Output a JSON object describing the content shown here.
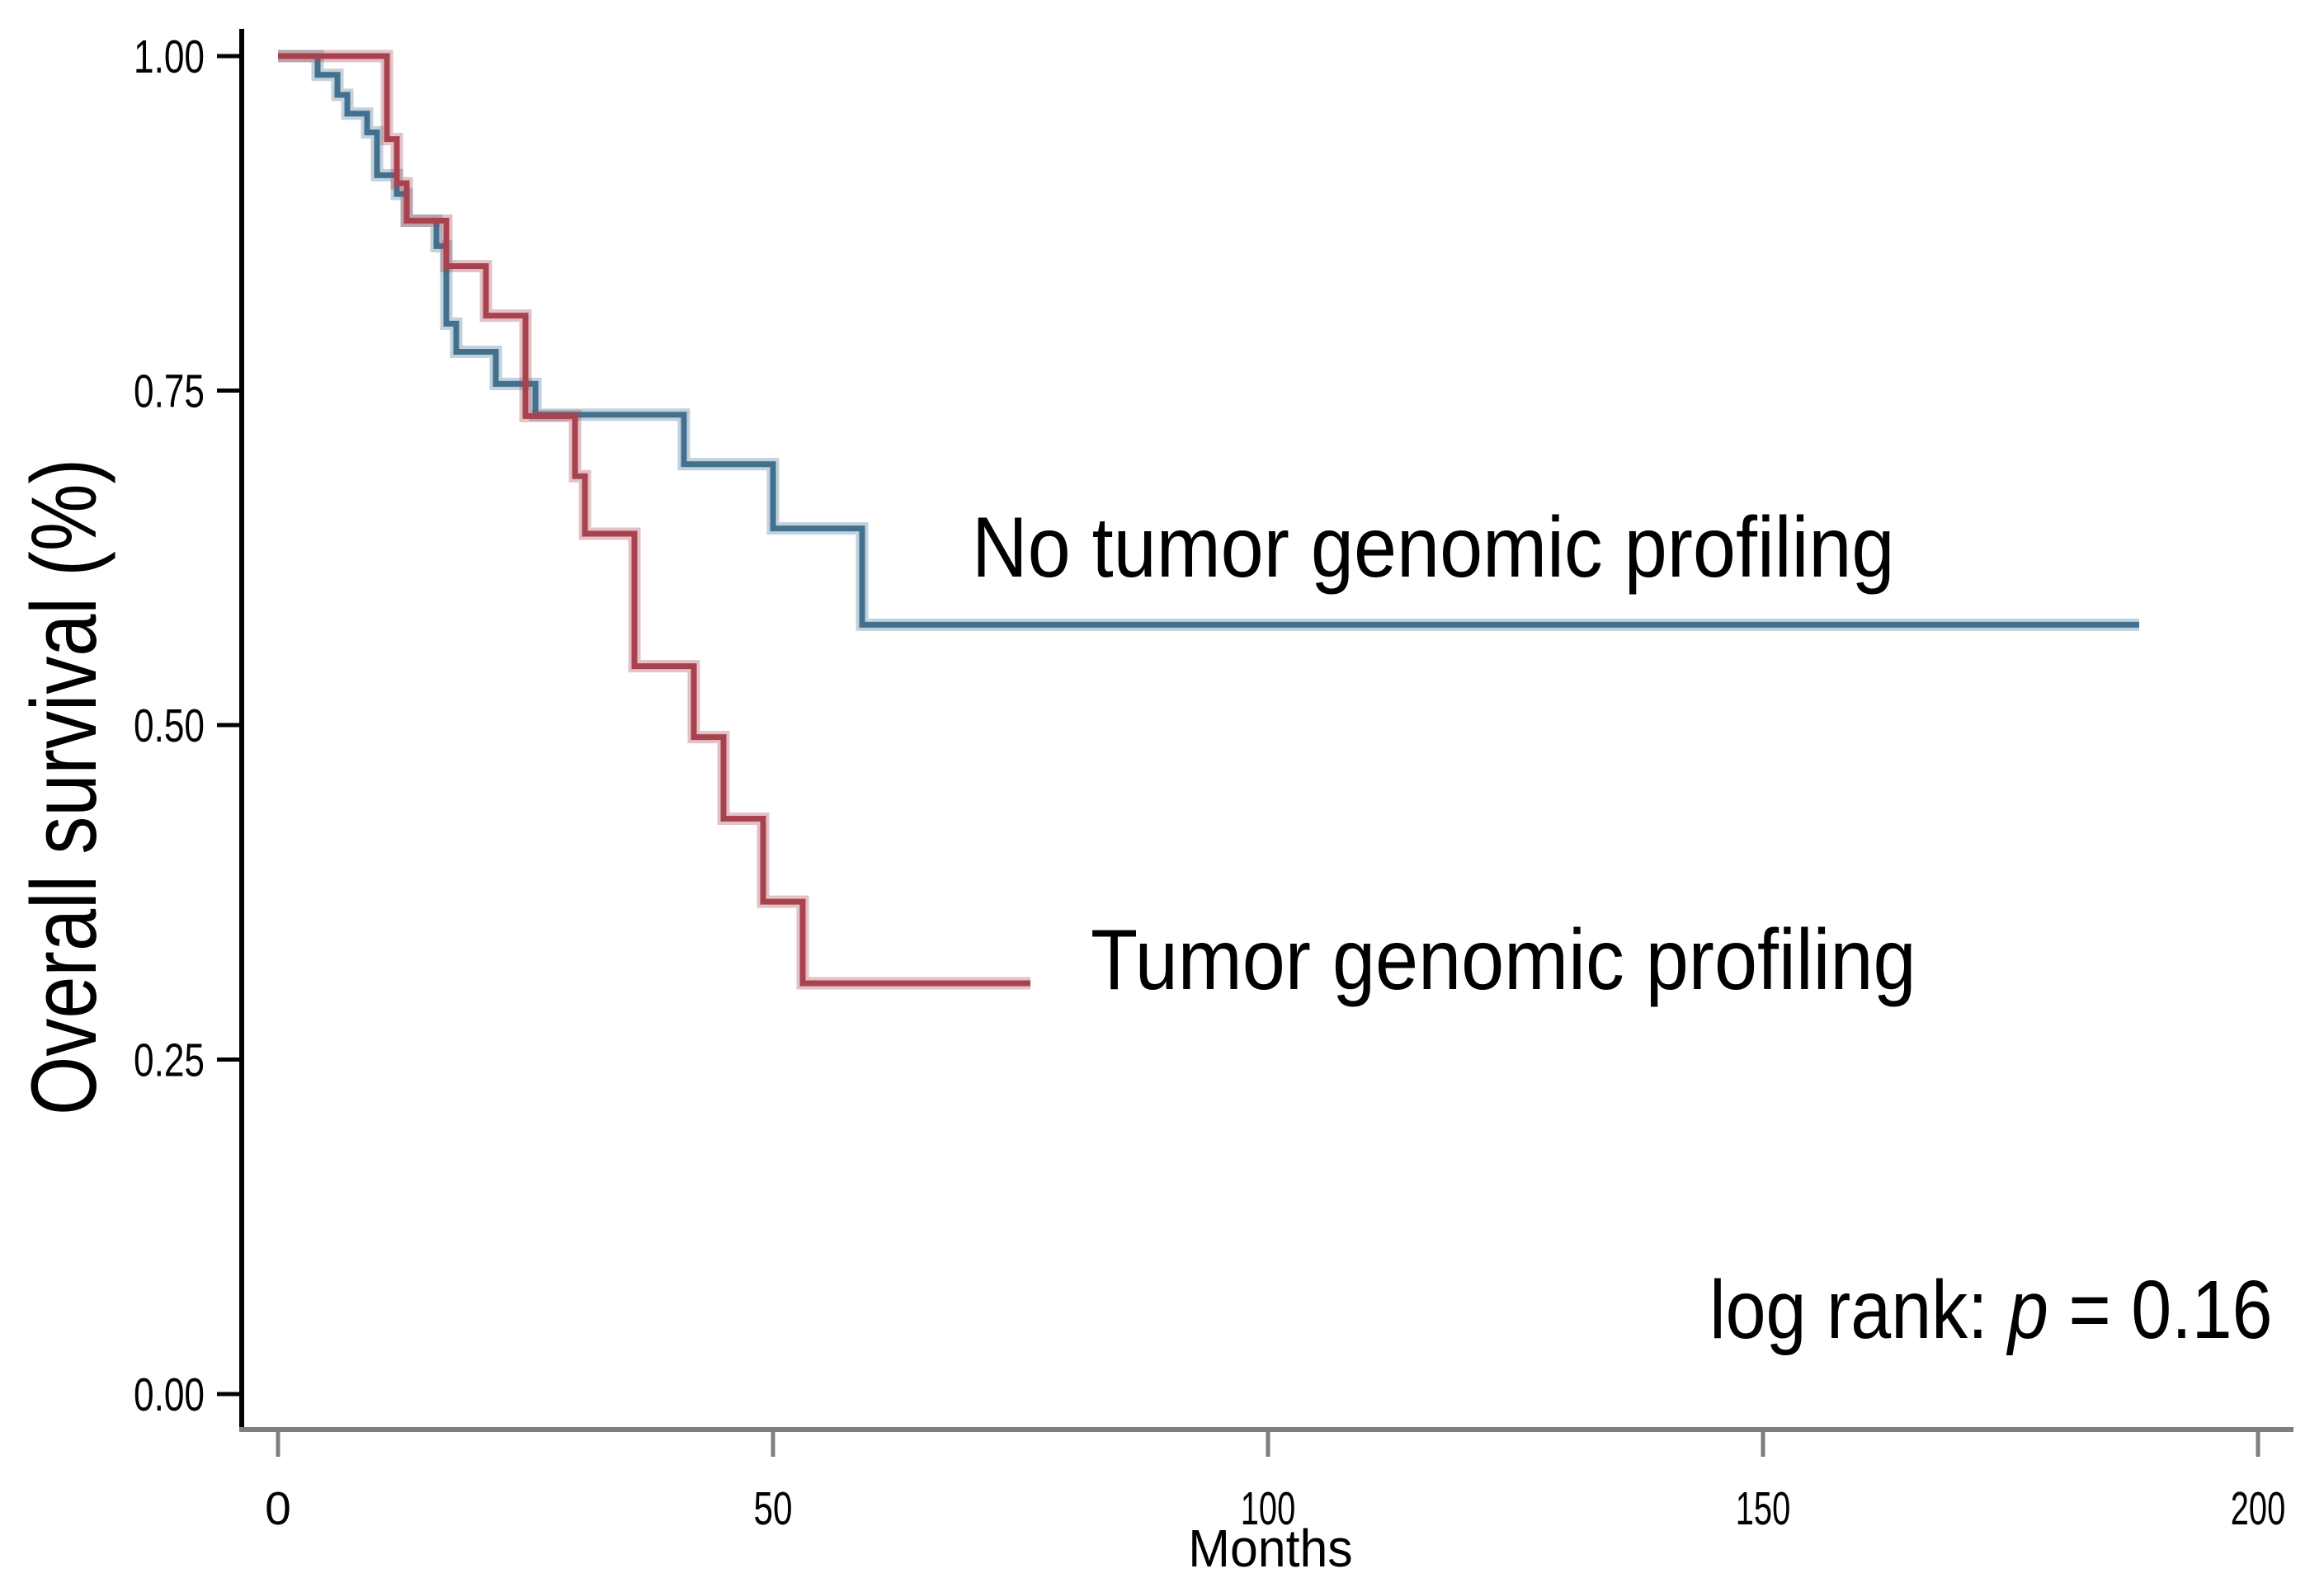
{
  "chart_data": {
    "type": "line",
    "subtype": "kaplan-meier-step-curves",
    "title": "",
    "xlabel": "Months",
    "ylabel": "Overall survival (%)",
    "xlim": [
      0,
      200
    ],
    "ylim": [
      0.0,
      1.0
    ],
    "x_ticks": [
      "0",
      "50",
      "100",
      "150",
      "200"
    ],
    "y_ticks": [
      "0.00",
      "0.25",
      "0.50",
      "0.75",
      "1.00"
    ],
    "grid": false,
    "legend_position": "inline-text-labels",
    "axis_colors": {
      "y_axis": "#000000",
      "x_axis": "#7f7f7f"
    },
    "annotation": {
      "prefix": "log rank: ",
      "p_symbol": "p",
      "suffix": " = 0.16"
    },
    "series": [
      {
        "name": "No tumor genomic profiling",
        "color": "#41718f",
        "points": [
          [
            0,
            1.0
          ],
          [
            4,
            0.986
          ],
          [
            6,
            0.971
          ],
          [
            7,
            0.957
          ],
          [
            9,
            0.943
          ],
          [
            10,
            0.911
          ],
          [
            12,
            0.897
          ],
          [
            13,
            0.877
          ],
          [
            16,
            0.858
          ],
          [
            17,
            0.8
          ],
          [
            18,
            0.779
          ],
          [
            22,
            0.755
          ],
          [
            26,
            0.732
          ],
          [
            41,
            0.695
          ],
          [
            50,
            0.647
          ],
          [
            59,
            0.575
          ],
          [
            188,
            0.575
          ]
        ]
      },
      {
        "name": "Tumor genomic profiling",
        "color": "#a8424f",
        "points": [
          [
            0,
            1.0
          ],
          [
            11,
            0.938
          ],
          [
            12,
            0.905
          ],
          [
            13,
            0.877
          ],
          [
            17,
            0.843
          ],
          [
            21,
            0.806
          ],
          [
            25,
            0.731
          ],
          [
            30,
            0.686
          ],
          [
            31,
            0.643
          ],
          [
            36,
            0.544
          ],
          [
            42,
            0.491
          ],
          [
            45,
            0.43
          ],
          [
            49,
            0.368
          ],
          [
            53,
            0.307
          ],
          [
            76,
            0.307
          ]
        ]
      }
    ]
  }
}
